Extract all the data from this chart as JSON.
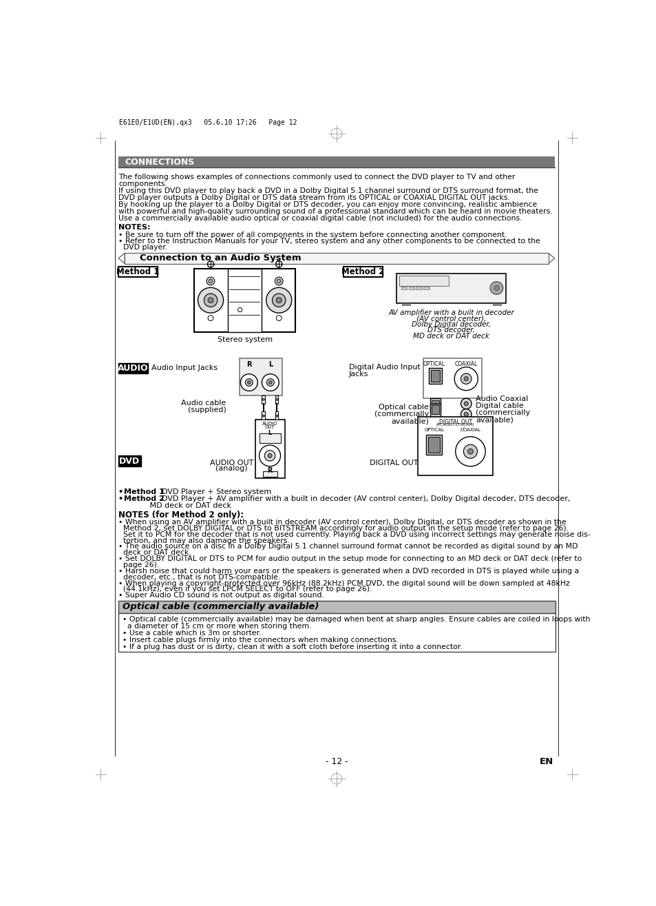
{
  "page_header": "E61E0/E1UD(EN).qx3   05.6.10 17:26   Page 12",
  "section_title": "CONNECTIONS",
  "intro_lines": [
    "The following shows examples of connections commonly used to connect the DVD player to TV and other",
    "components.",
    "If using this DVD player to play back a DVD in a Dolby Digital 5.1 channel surround or DTS surround format, the",
    "DVD player outputs a Dolby Digital or DTS data stream from its OPTICAL or COAXIAL DIGITAL OUT jacks.",
    "By hooking up the player to a Dolby Digital or DTS decoder, you can enjoy more convincing, realistic ambience",
    "with powerful and high-quality surrounding sound of a professional standard which can be heard in movie theaters.",
    "Use a commercially available audio optical or coaxial digital cable (not included) for the audio connections."
  ],
  "notes_title": "NOTES:",
  "notes_lines": [
    "• Be sure to turn off the power of all components in the system before connecting another component.",
    "• Refer to the Instruction Manuals for your TV, stereo system and any other components to be connected to the",
    "  DVD player."
  ],
  "connection_section_title": "Connection to an Audio System",
  "method1_label": "Method 1",
  "method2_label": "Method 2",
  "stereo_system_label": "Stereo system",
  "av_amplifier_label_lines": [
    "AV amplifier with a built in decoder",
    "(AV control center),",
    "Dolby Digital decoder,",
    "DTS decoder,",
    "MD deck or DAT deck"
  ],
  "audio_label": "AUDIO",
  "audio_input_jacks_label": "Audio Input Jacks",
  "audio_cable_label_lines": [
    "Audio cable",
    "(supplied)"
  ],
  "digital_audio_input_jacks_lines": [
    "Digital Audio Input",
    "Jacks"
  ],
  "optical_cable_label_lines": [
    "Optical cable",
    "(commercially",
    "available)"
  ],
  "audio_coaxial_label_lines": [
    "Audio Coaxial",
    "Digital cable",
    "(commercially",
    "available)"
  ],
  "dvd_label": "DVD",
  "audio_out_label": "AUDIO OUT\n(analog)",
  "digital_out_label": "DIGITAL OUT",
  "desc_lines": [
    "• ​Method 1​  DVD Player + Stereo system",
    "• ​Method 2​  DVD Player + AV amplifier with a built in decoder (AV control center), Dolby Digital decoder, DTS decoder,",
    "             MD deck or DAT deck"
  ],
  "notes_method2_title": "NOTES (for Method 2 only):",
  "notes_method2_lines": [
    "• When using an AV amplifier with a built in decoder (AV control center), Dolby Digital, or DTS decoder as shown in the",
    "  Method 2, set DOLBY DIGITAL or DTS to BITSTREAM accordingly for audio output in the setup mode (refer to page 26).",
    "  Set it to PCM for the decoder that is not used currently. Playing back a DVD using incorrect settings may generate noise dis-",
    "  tortion, and may also damage the speakers.",
    "• The audio source on a disc in a Dolby Digital 5.1 channel surround format cannot be recorded as digital sound by an MD",
    "  deck or DAT deck.",
    "• Set DOLBY DIGITAL or DTS to PCM for audio output in the setup mode for connecting to an MD deck or DAT deck (refer to",
    "  page 26).",
    "• Harsh noise that could harm your ears or the speakers is generated when a DVD recorded in DTS is played while using a",
    "  decoder, etc., that is not DTS-compatible.",
    "• When playing a copyright-protected over 96kHz (88.2kHz) PCM DVD, the digital sound will be down sampled at 48kHz",
    "  (44.1kHz), even if you set LPCM SELECT to OFF (refer to page 26).",
    "• Super Audio CD sound is not output as digital sound."
  ],
  "optical_box_title": "Optical cable (commercially available)",
  "optical_box_lines": [
    "• Optical cable (commercially available) may be damaged when bent at sharp angles. Ensure cables are coiled in loops with",
    "  a diameter of 15 cm or more when storing them.",
    "• Use a cable which is 3m or shorter.",
    "• Insert cable plugs firmly into the connectors when making connections.",
    "• If a plug has dust or is dirty, clean it with a soft cloth before inserting it into a connector."
  ],
  "page_number": "- 12 -",
  "page_en": "EN"
}
